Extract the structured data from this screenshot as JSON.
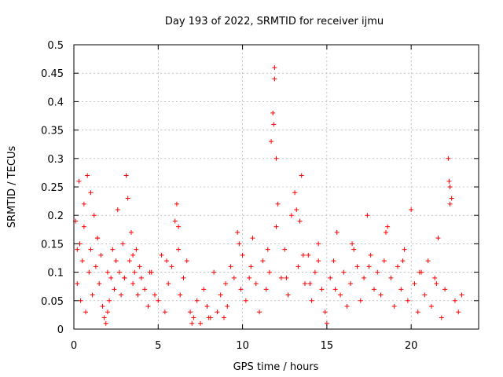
{
  "chart_data": {
    "type": "scatter",
    "title": "Day 193 of 2022, SRMTID for receiver ijmu",
    "xlabel": "GPS time / hours",
    "ylabel": "SRMTID / TECUs",
    "xlim": [
      0,
      24
    ],
    "ylim": [
      0,
      0.5
    ],
    "xticks": [
      0,
      5,
      10,
      15,
      20
    ],
    "xtick_labels": [
      "0",
      "5",
      "10",
      "15",
      "20"
    ],
    "yticks": [
      0,
      0.05,
      0.1,
      0.15,
      0.2,
      0.25,
      0.3,
      0.35,
      0.4,
      0.45,
      0.5
    ],
    "ytick_labels": [
      "0",
      "0.05",
      "0.1",
      "0.15",
      "0.2",
      "0.25",
      "0.3",
      "0.35",
      "0.4",
      "0.45",
      "0.5"
    ],
    "grid": true,
    "marker": "+",
    "color": "#ff0000",
    "series": [
      {
        "name": "SRMTID",
        "x": [
          0.1,
          0.2,
          0.3,
          0.35,
          0.4,
          0.5,
          0.6,
          0.7,
          0.8,
          0.9,
          1.0,
          1.1,
          1.2,
          1.3,
          1.4,
          1.5,
          1.6,
          1.7,
          1.8,
          1.9,
          2.0,
          2.1,
          2.2,
          2.3,
          2.4,
          2.5,
          2.6,
          2.7,
          2.8,
          2.9,
          3.0,
          3.1,
          3.2,
          3.3,
          3.4,
          3.5,
          3.6,
          3.7,
          3.8,
          3.9,
          4.0,
          4.2,
          4.4,
          4.6,
          4.8,
          5.0,
          5.2,
          5.4,
          5.6,
          5.8,
          6.0,
          6.1,
          6.2,
          6.3,
          6.5,
          6.7,
          6.9,
          7.1,
          7.3,
          7.5,
          7.7,
          7.9,
          8.1,
          8.3,
          8.5,
          8.7,
          8.9,
          9.1,
          9.3,
          9.5,
          9.7,
          9.9,
          10.0,
          10.2,
          10.4,
          10.6,
          10.8,
          11.0,
          11.2,
          11.4,
          11.6,
          11.7,
          11.8,
          11.9,
          12.0,
          12.1,
          12.3,
          12.5,
          12.7,
          12.9,
          13.1,
          13.3,
          13.5,
          13.7,
          13.9,
          14.1,
          14.3,
          14.5,
          14.7,
          14.9,
          15.0,
          15.2,
          15.4,
          15.6,
          15.8,
          16.0,
          16.2,
          16.4,
          16.6,
          16.8,
          17.0,
          17.2,
          17.4,
          17.6,
          17.8,
          18.0,
          18.2,
          18.4,
          18.6,
          18.8,
          19.0,
          19.2,
          19.4,
          19.6,
          19.8,
          20.0,
          20.2,
          20.4,
          20.6,
          20.8,
          21.0,
          21.2,
          21.4,
          21.6,
          21.8,
          22.0,
          22.2,
          22.3,
          22.4,
          22.6,
          22.8,
          23.0,
          0.2,
          0.6,
          1.0,
          1.4,
          2.0,
          3.0,
          3.5,
          4.5,
          5.5,
          6.2,
          7.0,
          8.0,
          9.0,
          9.8,
          10.5,
          11.5,
          11.85,
          11.9,
          12.0,
          12.6,
          13.2,
          13.4,
          13.6,
          14.0,
          14.5,
          15.5,
          16.5,
          17.5,
          18.5,
          19.5,
          20.5,
          21.5,
          22.25,
          22.3
        ],
        "y": [
          0.19,
          0.08,
          0.26,
          0.15,
          0.05,
          0.12,
          0.22,
          0.03,
          0.27,
          0.1,
          0.14,
          0.06,
          0.2,
          0.11,
          0.16,
          0.08,
          0.13,
          0.04,
          0.02,
          0.01,
          0.03,
          0.05,
          0.09,
          0.14,
          0.07,
          0.12,
          0.21,
          0.1,
          0.06,
          0.15,
          0.09,
          0.27,
          0.23,
          0.12,
          0.17,
          0.08,
          0.1,
          0.14,
          0.06,
          0.11,
          0.09,
          0.07,
          0.04,
          0.1,
          0.06,
          0.05,
          0.13,
          0.03,
          0.08,
          0.11,
          0.19,
          0.22,
          0.14,
          0.06,
          0.09,
          0.12,
          0.03,
          0.02,
          0.05,
          0.01,
          0.07,
          0.04,
          0.02,
          0.1,
          0.03,
          0.06,
          0.02,
          0.04,
          0.11,
          0.09,
          0.17,
          0.07,
          0.13,
          0.05,
          0.09,
          0.16,
          0.08,
          0.03,
          0.12,
          0.07,
          0.1,
          0.33,
          0.38,
          0.46,
          0.18,
          0.22,
          0.09,
          0.14,
          0.06,
          0.2,
          0.24,
          0.11,
          0.27,
          0.08,
          0.13,
          0.05,
          0.1,
          0.15,
          0.07,
          0.03,
          0.01,
          0.09,
          0.12,
          0.17,
          0.06,
          0.1,
          0.04,
          0.08,
          0.14,
          0.11,
          0.05,
          0.09,
          0.2,
          0.13,
          0.07,
          0.1,
          0.06,
          0.12,
          0.18,
          0.09,
          0.04,
          0.11,
          0.07,
          0.14,
          0.05,
          0.21,
          0.08,
          0.03,
          0.1,
          0.06,
          0.12,
          0.04,
          0.09,
          0.16,
          0.02,
          0.07,
          0.3,
          0.25,
          0.23,
          0.05,
          0.03,
          0.06,
          0.14,
          0.18,
          0.24,
          0.16,
          0.1,
          0.09,
          0.13,
          0.1,
          0.12,
          0.18,
          0.01,
          0.02,
          0.08,
          0.15,
          0.11,
          0.14,
          0.36,
          0.44,
          0.3,
          0.09,
          0.21,
          0.19,
          0.13,
          0.08,
          0.12,
          0.07,
          0.15,
          0.11,
          0.17,
          0.12,
          0.1,
          0.08,
          0.26,
          0.22
        ]
      }
    ]
  }
}
